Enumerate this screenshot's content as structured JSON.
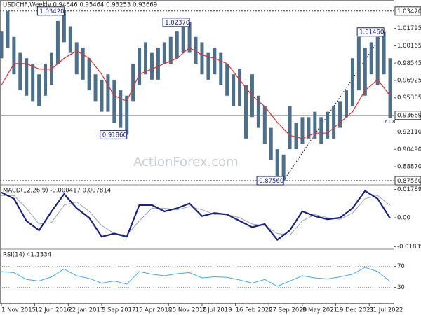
{
  "chart_data": {
    "type": "ohlc",
    "title": "USDCHF,Weekly  0.94646 0.95464 0.93253 0.93669",
    "watermark": "ActionForex.com",
    "fib_label": "61.8",
    "color": "#4d6f8a",
    "xlim": [
      0,
      376
    ],
    "xticks": [
      {
        "value": 0,
        "label": "1 Nov 2015"
      },
      {
        "value": 32,
        "label": "12 Jun 2016"
      },
      {
        "value": 64,
        "label": "22 Jan 2017"
      },
      {
        "value": 96,
        "label": "3 Sep 2017"
      },
      {
        "value": 128,
        "label": "15 Apr 2018"
      },
      {
        "value": 160,
        "label": "25 Nov 2018"
      },
      {
        "value": 192,
        "label": "7 Jul 2019"
      },
      {
        "value": 224,
        "label": "16 Feb 2020"
      },
      {
        "value": 256,
        "label": "27 Sep 2020"
      },
      {
        "value": 288,
        "label": "9 May 2021"
      },
      {
        "value": 320,
        "label": "19 Dec 2021"
      },
      {
        "value": 352,
        "label": "31 Jul 2022"
      }
    ],
    "ylim": [
      0.873,
      1.038
    ],
    "yticks": [
      1.01795,
      1.00165,
      0.98545,
      0.96925,
      0.95305,
      {
        "value": 0.9211,
        "label": "0.92110"
      },
      {
        "value": 0.9049,
        "label": "0.90490"
      },
      {
        "value": 0.8887,
        "label": "0.88870"
      }
    ],
    "last": 0.93669,
    "annotations": [
      {
        "value": 1.0342,
        "label": "1.03420",
        "x": 60
      },
      {
        "value": 1.0237,
        "label": "1.02370",
        "x": 180
      },
      {
        "value": 0.9186,
        "label": "0.91860",
        "x": 120
      },
      {
        "value": 0.8756,
        "label": "0.87560",
        "x": 270
      },
      {
        "value": 1.0146,
        "label": "1.01460",
        "x": 366
      }
    ],
    "x": [
      0,
      6,
      12,
      18,
      24,
      30,
      36,
      42,
      48,
      54,
      60,
      66,
      72,
      78,
      84,
      90,
      96,
      102,
      108,
      114,
      120,
      126,
      132,
      138,
      144,
      150,
      156,
      162,
      168,
      174,
      180,
      186,
      192,
      198,
      204,
      210,
      216,
      222,
      228,
      234,
      240,
      246,
      252,
      258,
      264,
      270,
      276,
      282,
      288,
      294,
      300,
      306,
      312,
      318,
      324,
      330,
      336,
      342,
      348,
      354,
      360,
      366,
      372
    ],
    "high": [
      1.015,
      1.034,
      1.01,
      0.995,
      0.99,
      0.985,
      0.975,
      0.985,
      0.995,
      1.025,
      1.034,
      1.02,
      1.005,
      1.0,
      0.99,
      0.975,
      0.97,
      0.975,
      0.97,
      0.96,
      0.955,
      0.985,
      1.0,
      1.005,
      0.995,
      1.0,
      1.005,
      1.01,
      1.015,
      1.02,
      1.0237,
      1.01,
      1.005,
      0.995,
      1.0,
      0.995,
      0.985,
      0.975,
      0.98,
      0.965,
      0.975,
      0.955,
      0.945,
      0.925,
      0.905,
      0.9,
      0.945,
      0.93,
      0.935,
      0.935,
      0.94,
      0.935,
      0.94,
      0.945,
      0.95,
      0.96,
      0.99,
      1.01,
      1.0,
      1.005,
      1.01,
      1.0146,
      0.99
    ],
    "low": [
      0.99,
      1.0,
      0.975,
      0.96,
      0.955,
      0.95,
      0.945,
      0.955,
      0.965,
      0.985,
      1.005,
      0.995,
      0.975,
      0.97,
      0.96,
      0.95,
      0.94,
      0.94,
      0.93,
      0.925,
      0.9186,
      0.95,
      0.965,
      0.975,
      0.97,
      0.97,
      0.985,
      0.985,
      0.99,
      0.995,
      0.995,
      0.985,
      0.975,
      0.97,
      0.975,
      0.965,
      0.955,
      0.945,
      0.945,
      0.915,
      0.935,
      0.925,
      0.91,
      0.895,
      0.88,
      0.8756,
      0.905,
      0.905,
      0.91,
      0.915,
      0.915,
      0.91,
      0.915,
      0.915,
      0.925,
      0.935,
      0.945,
      0.96,
      0.955,
      0.975,
      0.965,
      0.975,
      0.934
    ],
    "overlay": {
      "color": "#e03030",
      "x": [
        0,
        12,
        24,
        36,
        48,
        60,
        72,
        84,
        96,
        108,
        120,
        132,
        144,
        156,
        168,
        180,
        192,
        204,
        216,
        228,
        240,
        252,
        264,
        276,
        288,
        300,
        312,
        324,
        336,
        348,
        360,
        372
      ],
      "values": [
        0.965,
        0.985,
        0.985,
        0.98,
        0.98,
        0.99,
        0.997,
        0.99,
        0.975,
        0.955,
        0.95,
        0.975,
        0.98,
        0.985,
        0.99,
        1.0,
        0.993,
        0.99,
        0.985,
        0.97,
        0.955,
        0.945,
        0.93,
        0.918,
        0.915,
        0.92,
        0.92,
        0.93,
        0.94,
        0.96,
        0.97,
        0.955
      ]
    },
    "macd": {
      "title": "MACD(12,26,9) -0.000417 0.007814",
      "ylim": [
        -0.0195,
        0.0199
      ],
      "yticks": [
        0.017898,
        {
          "value": 0,
          "label": "0.00"
        },
        -0.018354
      ],
      "x": [
        0,
        12,
        24,
        36,
        48,
        60,
        72,
        84,
        96,
        108,
        120,
        132,
        144,
        156,
        168,
        180,
        192,
        204,
        216,
        228,
        240,
        252,
        264,
        276,
        288,
        300,
        312,
        324,
        336,
        348,
        360,
        372
      ],
      "series": [
        {
          "color": "#1a237e",
          "values": [
            0.016,
            0.012,
            -0.002,
            -0.008,
            0.004,
            0.015,
            0.006,
            0.0,
            -0.012,
            -0.01,
            -0.012,
            0.008,
            0.008,
            0.004,
            0.006,
            0.009,
            0.001,
            0.003,
            0.002,
            -0.002,
            -0.006,
            -0.004,
            -0.014,
            -0.008,
            0.004,
            0.001,
            -0.001,
            0.0,
            0.006,
            0.017,
            0.012,
            -0.000417
          ]
        },
        {
          "color": "#9aa6b8",
          "values": [
            0.014,
            0.014,
            0.006,
            -0.004,
            -0.003,
            0.008,
            0.01,
            0.004,
            -0.005,
            -0.01,
            -0.011,
            -0.002,
            0.006,
            0.006,
            0.005,
            0.007,
            0.005,
            0.002,
            0.002,
            0.0,
            -0.004,
            -0.005,
            -0.01,
            -0.011,
            -0.002,
            0.002,
            0.0,
            -0.001,
            0.003,
            0.012,
            0.014,
            0.007814
          ]
        }
      ]
    },
    "rsi": {
      "title": "RSI(14) 41.1334",
      "ylim": [
        0,
        100
      ],
      "yticks": [
        70,
        30
      ],
      "color": "#3fa9f5",
      "x": [
        0,
        12,
        24,
        36,
        48,
        60,
        72,
        84,
        96,
        108,
        120,
        132,
        144,
        156,
        168,
        180,
        192,
        204,
        216,
        228,
        240,
        252,
        264,
        276,
        288,
        300,
        312,
        324,
        336,
        348,
        360,
        372
      ],
      "values": [
        60,
        58,
        45,
        42,
        50,
        65,
        52,
        47,
        38,
        42,
        36,
        60,
        55,
        52,
        56,
        58,
        48,
        50,
        49,
        44,
        38,
        45,
        32,
        42,
        52,
        48,
        46,
        50,
        55,
        68,
        60,
        41.1334
      ]
    }
  }
}
